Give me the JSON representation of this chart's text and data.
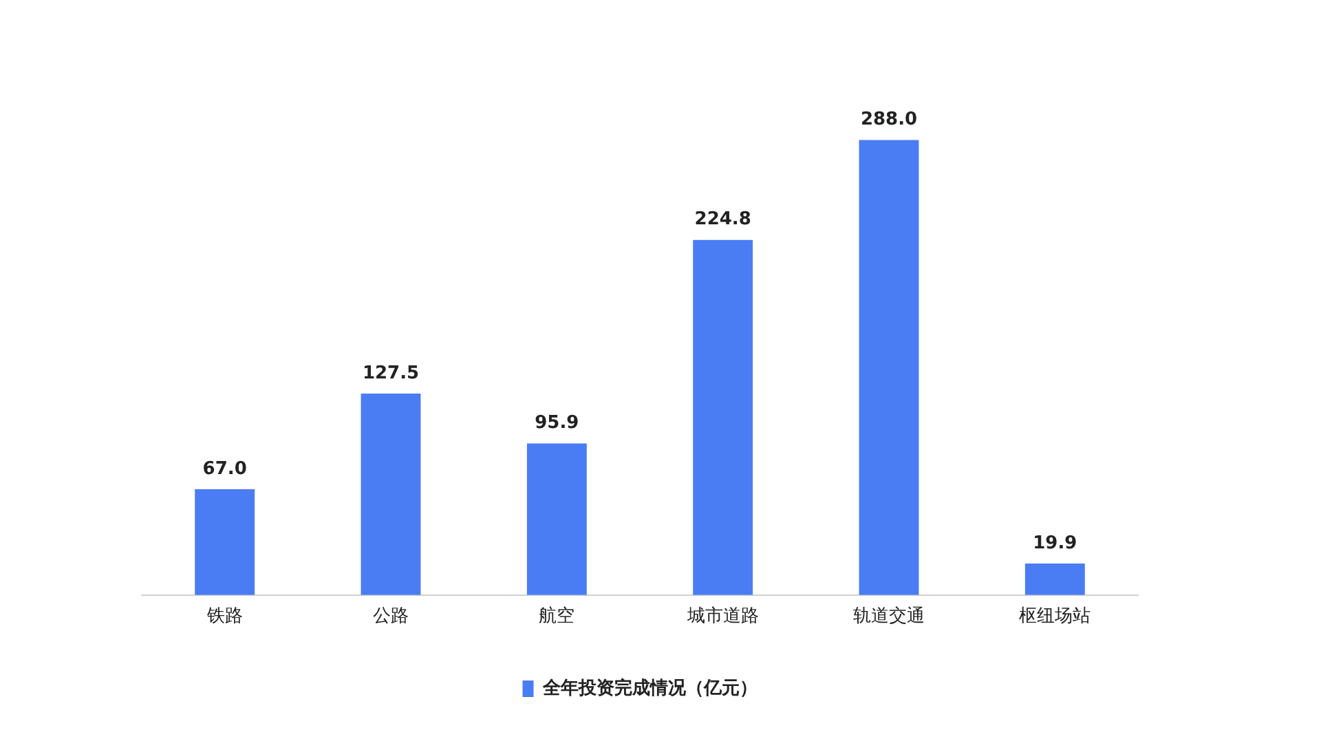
{
  "chart_data": {
    "type": "bar",
    "categories": [
      "铁路",
      "公路",
      "航空",
      "城市道路",
      "轨道交通",
      "枢纽场站"
    ],
    "series": [
      {
        "name": "全年投资完成情况（亿元）",
        "color": "#4a7cf4",
        "values": [
          67.0,
          127.5,
          95.9,
          224.8,
          288.0,
          19.9
        ],
        "value_labels": [
          "67.0",
          "127.5",
          "95.9",
          "224.8",
          "288.0",
          "19.9"
        ]
      }
    ],
    "legend": "bottom",
    "grid": false
  }
}
